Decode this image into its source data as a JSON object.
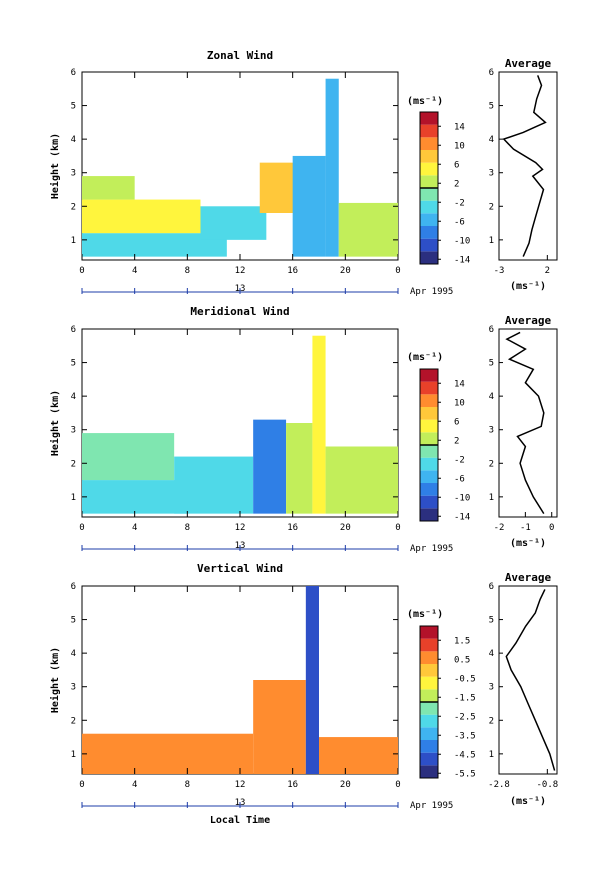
{
  "x_axis": {
    "ticks": [
      "0",
      "4",
      "8",
      "12",
      "16",
      "20",
      "0"
    ],
    "day_label": "13",
    "month_label": "Apr 1995",
    "title": "Local Time"
  },
  "height_ticks": [
    "1",
    "2",
    "3",
    "4",
    "5",
    "6"
  ],
  "y_title": "Height (km)",
  "units": "(ms⁻¹)",
  "avg_title": "Average",
  "chart_data": [
    {
      "type": "heatmap",
      "title": "Zonal Wind",
      "ylabel": "Height (km)",
      "xlabel": "",
      "xlim": [
        0,
        24
      ],
      "ylim": [
        0.4,
        6.0
      ],
      "colorbar": {
        "ticks": [
          "14",
          "10",
          "6",
          "2",
          "-2",
          "-6",
          "-10",
          "-14"
        ],
        "range": [
          -16,
          16
        ],
        "colors": [
          "#2b2f7f",
          "#2d4fc7",
          "#2f7fe6",
          "#3fb4f0",
          "#4fd9e8",
          "#7fe6b0",
          "#c2ee5a",
          "#fff53d",
          "#ffc83a",
          "#ff8c2f",
          "#e8412a",
          "#b3122a"
        ]
      },
      "blocks": [
        {
          "x": [
            0,
            11
          ],
          "y": [
            0.5,
            1.2
          ],
          "v": -5
        },
        {
          "x": [
            0,
            9
          ],
          "y": [
            1.2,
            2.2
          ],
          "v": 3
        },
        {
          "x": [
            0,
            4
          ],
          "y": [
            2.2,
            2.9
          ],
          "v": 2
        },
        {
          "x": [
            9,
            14
          ],
          "y": [
            1.0,
            2.0
          ],
          "v": -3
        },
        {
          "x": [
            13.5,
            17
          ],
          "y": [
            1.8,
            3.3
          ],
          "v": 6
        },
        {
          "x": [
            16,
            18.5
          ],
          "y": [
            0.5,
            3.5
          ],
          "v": -6
        },
        {
          "x": [
            18.5,
            19.5
          ],
          "y": [
            0.5,
            5.8
          ],
          "v": -8
        },
        {
          "x": [
            19.5,
            24
          ],
          "y": [
            0.5,
            2.1
          ],
          "v": 1
        }
      ],
      "avg": {
        "xlim": [
          -3,
          3
        ],
        "xticks": [
          "-3",
          "2"
        ],
        "x_tick_values": [
          -3,
          2
        ],
        "points": [
          [
            -0.5,
            0.5
          ],
          [
            0.1,
            0.9
          ],
          [
            0.4,
            1.3
          ],
          [
            0.8,
            1.7
          ],
          [
            1.2,
            2.1
          ],
          [
            1.6,
            2.5
          ],
          [
            0.5,
            2.9
          ],
          [
            1.5,
            3.1
          ],
          [
            0.8,
            3.3
          ],
          [
            -1.5,
            3.7
          ],
          [
            -2.5,
            4.0
          ],
          [
            -0.5,
            4.2
          ],
          [
            1.8,
            4.5
          ],
          [
            0.6,
            4.8
          ],
          [
            0.9,
            5.2
          ],
          [
            1.4,
            5.6
          ],
          [
            1.0,
            5.9
          ]
        ]
      }
    },
    {
      "type": "heatmap",
      "title": "Meridional Wind",
      "ylabel": "Height (km)",
      "xlabel": "",
      "xlim": [
        0,
        24
      ],
      "ylim": [
        0.4,
        6.0
      ],
      "colorbar": {
        "ticks": [
          "14",
          "10",
          "6",
          "2",
          "-2",
          "-6",
          "-10",
          "-14"
        ],
        "range": [
          -16,
          16
        ],
        "colors": [
          "#2b2f7f",
          "#2d4fc7",
          "#2f7fe6",
          "#3fb4f0",
          "#4fd9e8",
          "#7fe6b0",
          "#c2ee5a",
          "#fff53d",
          "#ffc83a",
          "#ff8c2f",
          "#e8412a",
          "#b3122a"
        ]
      },
      "blocks": [
        {
          "x": [
            0,
            8
          ],
          "y": [
            0.5,
            1.5
          ],
          "v": -3
        },
        {
          "x": [
            0,
            7
          ],
          "y": [
            1.5,
            2.9
          ],
          "v": -2
        },
        {
          "x": [
            7,
            13
          ],
          "y": [
            0.5,
            2.2
          ],
          "v": -5
        },
        {
          "x": [
            13,
            15.5
          ],
          "y": [
            0.5,
            3.3
          ],
          "v": -9
        },
        {
          "x": [
            15.5,
            17.5
          ],
          "y": [
            0.5,
            3.2
          ],
          "v": 1
        },
        {
          "x": [
            17.5,
            18.5
          ],
          "y": [
            0.5,
            5.8
          ],
          "v": 3
        },
        {
          "x": [
            18.5,
            24
          ],
          "y": [
            0.5,
            2.5
          ],
          "v": 0
        }
      ],
      "avg": {
        "xlim": [
          -2,
          0.2
        ],
        "xticks": [
          "-2",
          "-1",
          "0"
        ],
        "x_tick_values": [
          -2,
          -1,
          0
        ],
        "points": [
          [
            -0.3,
            0.5
          ],
          [
            -0.7,
            1.0
          ],
          [
            -1.0,
            1.5
          ],
          [
            -1.2,
            2.0
          ],
          [
            -1.0,
            2.5
          ],
          [
            -1.3,
            2.8
          ],
          [
            -0.4,
            3.1
          ],
          [
            -0.3,
            3.5
          ],
          [
            -0.5,
            4.0
          ],
          [
            -1.0,
            4.4
          ],
          [
            -0.7,
            4.8
          ],
          [
            -1.6,
            5.1
          ],
          [
            -1.0,
            5.4
          ],
          [
            -1.7,
            5.7
          ],
          [
            -1.2,
            5.9
          ]
        ]
      }
    },
    {
      "type": "heatmap",
      "title": "Vertical Wind",
      "ylabel": "Height (km)",
      "xlabel": "Local Time",
      "xlim": [
        0,
        24
      ],
      "ylim": [
        0.4,
        6.0
      ],
      "colorbar": {
        "ticks": [
          "1.5",
          "0.5",
          "-0.5",
          "-1.5",
          "-2.5",
          "-3.5",
          "-4.5",
          "-5.5"
        ],
        "range": [
          -6,
          2
        ],
        "colors": [
          "#2b2f7f",
          "#2d4fc7",
          "#2f7fe6",
          "#3fb4f0",
          "#4fd9e8",
          "#7fe6b0",
          "#c2ee5a",
          "#fff53d",
          "#ffc83a",
          "#ff8c2f",
          "#e8412a",
          "#b3122a"
        ]
      },
      "blocks": [
        {
          "x": [
            0,
            13
          ],
          "y": [
            0.4,
            1.6
          ],
          "v": 0.3
        },
        {
          "x": [
            13,
            17
          ],
          "y": [
            0.4,
            3.2
          ],
          "v": 0.4
        },
        {
          "x": [
            17,
            18
          ],
          "y": [
            0.4,
            6.0
          ],
          "v": -5.2
        },
        {
          "x": [
            18,
            24
          ],
          "y": [
            0.4,
            1.5
          ],
          "v": 0.3
        }
      ],
      "avg": {
        "xlim": [
          -2.8,
          -0.4
        ],
        "xticks": [
          "-2.8",
          "-0.8"
        ],
        "x_tick_values": [
          -2.8,
          -0.8
        ],
        "points": [
          [
            -0.5,
            0.5
          ],
          [
            -0.7,
            1.0
          ],
          [
            -1.0,
            1.5
          ],
          [
            -1.3,
            2.0
          ],
          [
            -1.6,
            2.5
          ],
          [
            -1.9,
            3.0
          ],
          [
            -2.3,
            3.5
          ],
          [
            -2.5,
            3.9
          ],
          [
            -2.1,
            4.3
          ],
          [
            -1.7,
            4.8
          ],
          [
            -1.3,
            5.2
          ],
          [
            -1.1,
            5.6
          ],
          [
            -0.9,
            5.9
          ]
        ]
      }
    }
  ]
}
